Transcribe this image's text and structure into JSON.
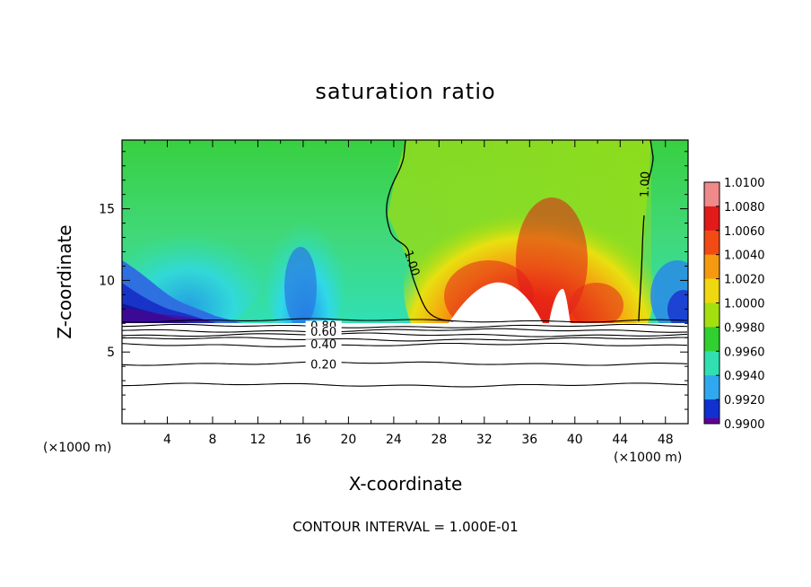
{
  "chart_data": {
    "type": "heatmap",
    "title": "saturation ratio",
    "xlabel": "X-coordinate",
    "ylabel": "Z-coordinate",
    "x_unit": "(×1000 m)",
    "xlim": [
      0,
      50
    ],
    "ylim": [
      0,
      19.8
    ],
    "x_ticks": [
      4,
      8,
      12,
      16,
      20,
      24,
      28,
      32,
      36,
      40,
      44,
      48
    ],
    "y_ticks": [
      5,
      10,
      15
    ],
    "footer": "CONTOUR INTERVAL = 1.000E-01",
    "colorbar": {
      "levels": [
        "1.0100",
        "1.0080",
        "1.0060",
        "1.0040",
        "1.0020",
        "1.0000",
        "0.9980",
        "0.9960",
        "0.9940",
        "0.9920",
        "0.9900"
      ],
      "colors": [
        "#f08a8a",
        "#e21a1a",
        "#f24a14",
        "#f59a10",
        "#f0d810",
        "#a4e010",
        "#30d030",
        "#30e0b0",
        "#30a8f0",
        "#1030d0",
        "#600098"
      ]
    },
    "contours": [
      {
        "label": "1.00",
        "x": 25.6,
        "z": 11.2
      },
      {
        "label": "1.00",
        "x": 46.2,
        "z": 16.7
      },
      {
        "label": "0.80",
        "x": 17.8,
        "z": 6.8
      },
      {
        "label": "0.60",
        "x": 17.8,
        "z": 6.4
      },
      {
        "label": "0.40",
        "x": 17.8,
        "z": 5.5
      },
      {
        "label": "0.20",
        "x": 17.8,
        "z": 4.1
      }
    ],
    "contour_lines_z": [
      7.2,
      6.8,
      6.5,
      6.2,
      5.9,
      5.5,
      4.2,
      2.7
    ]
  }
}
